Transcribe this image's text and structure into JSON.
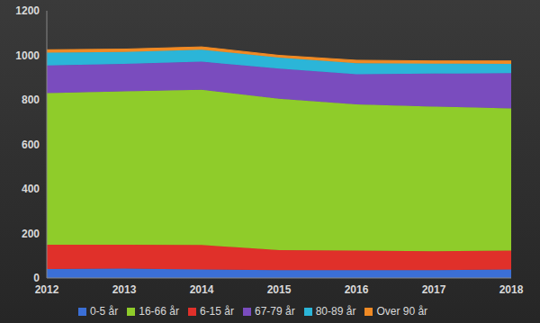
{
  "chart_data": {
    "type": "area",
    "stacked": true,
    "grid": false,
    "legend": "bottom",
    "x": [
      2012,
      2013,
      2014,
      2015,
      2016,
      2017,
      2018
    ],
    "xlim": [
      2012,
      2018
    ],
    "xticks": [
      2012,
      2013,
      2014,
      2015,
      2016,
      2017,
      2018
    ],
    "ylim": [
      0,
      1200
    ],
    "yticks": [
      0,
      200,
      400,
      600,
      800,
      1000,
      1200
    ],
    "series": [
      {
        "name": "0-5 år",
        "color": "#3b6fd6",
        "values": [
          40,
          42,
          38,
          35,
          35,
          35,
          38
        ]
      },
      {
        "name": "6-15 år",
        "color": "#e0302a",
        "values": [
          110,
          108,
          110,
          90,
          88,
          85,
          85
        ]
      },
      {
        "name": "16-66 år",
        "color": "#8fcc2a",
        "values": [
          680,
          688,
          697,
          680,
          657,
          650,
          639
        ]
      },
      {
        "name": "67-79 år",
        "color": "#7a4cbe",
        "values": [
          125,
          124,
          127,
          135,
          135,
          148,
          158
        ]
      },
      {
        "name": "80-89 år",
        "color": "#2bb5d8",
        "values": [
          57,
          53,
          53,
          50,
          50,
          45,
          42
        ]
      },
      {
        "name": "Over 90 år",
        "color": "#f08a24",
        "values": [
          13,
          13,
          13,
          10,
          13,
          12,
          13
        ]
      }
    ]
  }
}
